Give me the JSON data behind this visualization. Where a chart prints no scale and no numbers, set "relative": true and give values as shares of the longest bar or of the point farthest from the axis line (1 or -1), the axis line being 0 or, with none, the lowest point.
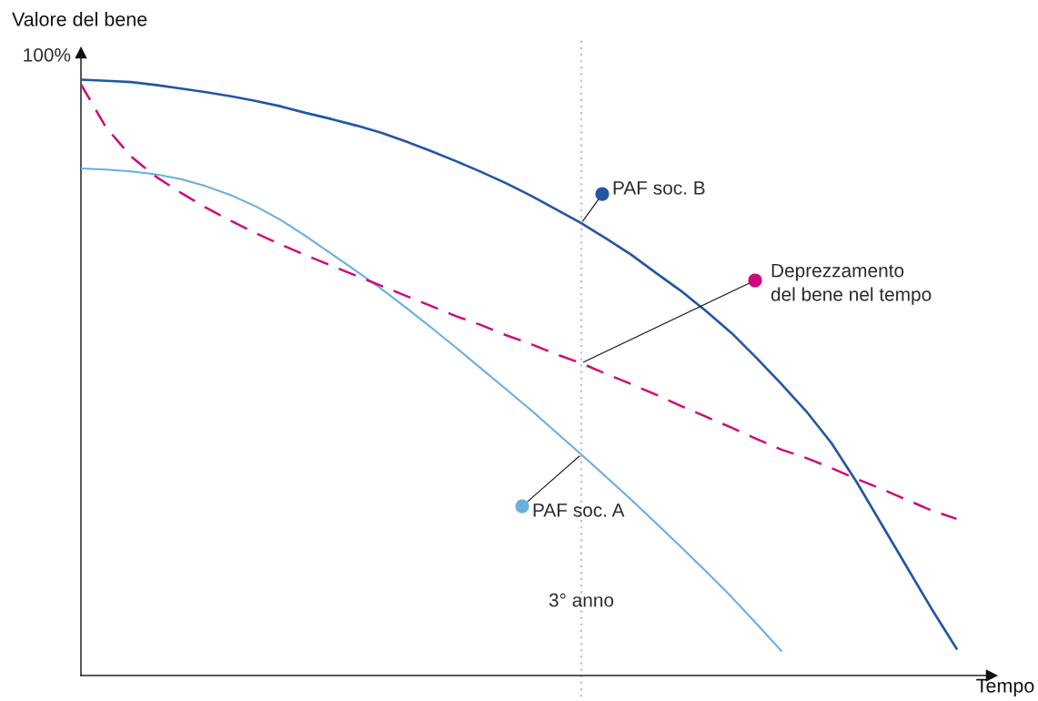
{
  "chart_data": {
    "type": "line",
    "relative": true,
    "ylabel": "Valore del bene",
    "xlabel": "Tempo",
    "annotations": [
      "100%",
      "3° anno"
    ],
    "line_style": "solid",
    "legend": "top right",
    "categories": [
      null,
      null,
      null,
      null,
      null,
      null,
      null,
      null,
      null,
      null,
      null,
      null,
      null,
      null,
      null,
      null,
      null,
      null,
      null,
      null,
      null,
      null,
      null,
      null,
      null,
      null,
      null,
      null,
      null,
      null,
      null,
      null,
      null,
      null,
      null,
      null
    ],
    "series": [
      {
        "name": "PAF soc. B",
        "color": "#2356a4",
        "values": [
          1.0,
          0.998,
          0.996,
          0.991,
          0.985,
          0.979,
          0.972,
          0.964,
          0.955,
          0.944,
          0.934,
          0.923,
          0.911,
          0.896,
          0.88,
          0.863,
          0.845,
          0.826,
          0.805,
          0.782,
          0.759,
          0.733,
          0.706,
          0.675,
          0.645,
          0.611,
          0.575,
          0.533,
          0.489,
          0.443,
          0.39,
          0.325,
          0.254,
          0.183,
          0.112,
          0.045
        ]
      },
      {
        "name": "PAF soc. A",
        "color": "#6aaee0",
        "values": [
          0.851,
          0.849,
          0.846,
          0.841,
          0.833,
          0.821,
          0.806,
          0.787,
          0.764,
          0.737,
          0.708,
          0.679,
          0.649,
          0.617,
          0.584,
          0.55,
          0.515,
          0.48,
          0.445,
          0.408,
          0.371,
          0.333,
          0.295,
          0.255,
          0.215,
          0.174,
          0.132,
          0.087,
          0.041,
          null,
          null,
          null,
          null,
          null,
          null,
          null
        ]
      },
      {
        "name": "Deprezzamento\ndel bene nel tempo",
        "color": "#cf0a7d",
        "line_style": "dashed",
        "values": [
          0.992,
          0.92,
          0.871,
          0.837,
          0.81,
          0.785,
          0.763,
          0.742,
          0.723,
          0.705,
          0.688,
          0.671,
          0.654,
          0.637,
          0.62,
          0.603,
          0.588,
          0.571,
          0.556,
          0.539,
          0.524,
          0.506,
          0.489,
          0.471,
          0.452,
          0.434,
          0.416,
          0.397,
          0.379,
          0.365,
          0.348,
          0.33,
          0.313,
          0.295,
          0.277,
          0.263
        ]
      }
    ]
  }
}
